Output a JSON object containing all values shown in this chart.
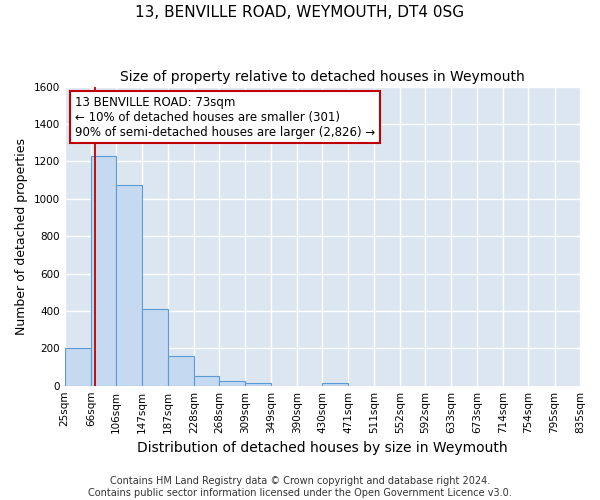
{
  "title": "13, BENVILLE ROAD, WEYMOUTH, DT4 0SG",
  "subtitle": "Size of property relative to detached houses in Weymouth",
  "xlabel": "Distribution of detached houses by size in Weymouth",
  "ylabel": "Number of detached properties",
  "bin_edges": [
    25,
    66,
    106,
    147,
    187,
    228,
    268,
    309,
    349,
    390,
    430,
    471,
    511,
    552,
    592,
    633,
    673,
    714,
    754,
    795,
    835
  ],
  "bar_heights": [
    200,
    1230,
    1075,
    410,
    160,
    50,
    25,
    15,
    0,
    0,
    15,
    0,
    0,
    0,
    0,
    0,
    0,
    0,
    0,
    0
  ],
  "bar_color": "#c5d9f1",
  "bar_edge_color": "#5b9bd5",
  "property_line_x": 73,
  "property_line_color": "#c00000",
  "ylim": [
    0,
    1600
  ],
  "yticks": [
    0,
    200,
    400,
    600,
    800,
    1000,
    1200,
    1400,
    1600
  ],
  "annotation_line1": "13 BENVILLE ROAD: 73sqm",
  "annotation_line2": "← 10% of detached houses are smaller (301)",
  "annotation_line3": "90% of semi-detached houses are larger (2,826) →",
  "annotation_box_edge": "#c00000",
  "footer_line1": "Contains HM Land Registry data © Crown copyright and database right 2024.",
  "footer_line2": "Contains public sector information licensed under the Open Government Licence v3.0.",
  "figure_bg": "#ffffff",
  "plot_bg": "#dce6f1",
  "grid_color": "#ffffff",
  "title_fontsize": 11,
  "subtitle_fontsize": 10,
  "ylabel_fontsize": 9,
  "xlabel_fontsize": 10,
  "tick_fontsize": 7.5,
  "annotation_fontsize": 8.5,
  "footer_fontsize": 7
}
